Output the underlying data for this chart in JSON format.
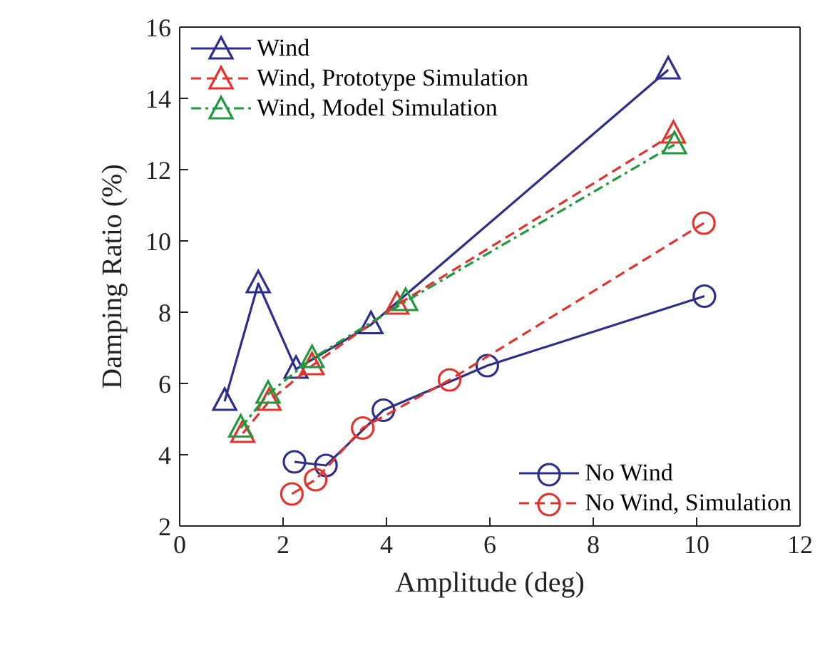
{
  "chart_data": {
    "type": "line",
    "xlabel": "Amplitude (deg)",
    "ylabel": "Damping Ratio (%)",
    "xlim": [
      0,
      12
    ],
    "xticks": [
      0,
      2,
      4,
      6,
      8,
      10,
      12
    ],
    "ylim": [
      2,
      16
    ],
    "yticks": [
      2,
      4,
      6,
      8,
      10,
      12,
      14,
      16
    ],
    "grid": false,
    "legend": "top left",
    "series": [
      {
        "name": "Wind",
        "color": "#2e2e8c",
        "marker": "triangle",
        "line_style": "solid",
        "x": [
          0.87,
          1.52,
          2.25,
          3.7,
          4.25,
          9.45
        ],
        "values": [
          5.5,
          8.8,
          6.4,
          7.65,
          null,
          14.8
        ]
      },
      {
        "name": "Wind, Prototype Simulation",
        "color": "#e5322d",
        "marker": "triangle",
        "line_style": "dashed",
        "x": [
          1.22,
          1.73,
          2.56,
          4.2,
          9.55
        ],
        "values": [
          4.6,
          5.5,
          6.5,
          8.2,
          13.0
        ]
      },
      {
        "name": "Wind, Model Simulation",
        "color": "#1f9a3c",
        "marker": "triangle",
        "line_style": "dotted",
        "x": [
          1.18,
          1.71,
          2.56,
          4.37,
          9.57
        ],
        "values": [
          4.75,
          5.7,
          6.7,
          8.3,
          12.7
        ]
      },
      {
        "name": "No Wind",
        "color": "#2e2e8c",
        "marker": "circle",
        "line_style": "solid",
        "x": [
          2.22,
          2.83,
          3.94,
          5.95,
          10.15
        ],
        "values": [
          3.8,
          3.7,
          5.25,
          6.5,
          8.45
        ]
      },
      {
        "name": "No Wind, Simulation",
        "color": "#e5322d",
        "marker": "circle",
        "line_style": "dashed",
        "x": [
          2.17,
          2.63,
          3.54,
          5.22,
          10.14
        ],
        "values": [
          2.9,
          3.3,
          4.75,
          6.1,
          10.5
        ]
      }
    ]
  }
}
